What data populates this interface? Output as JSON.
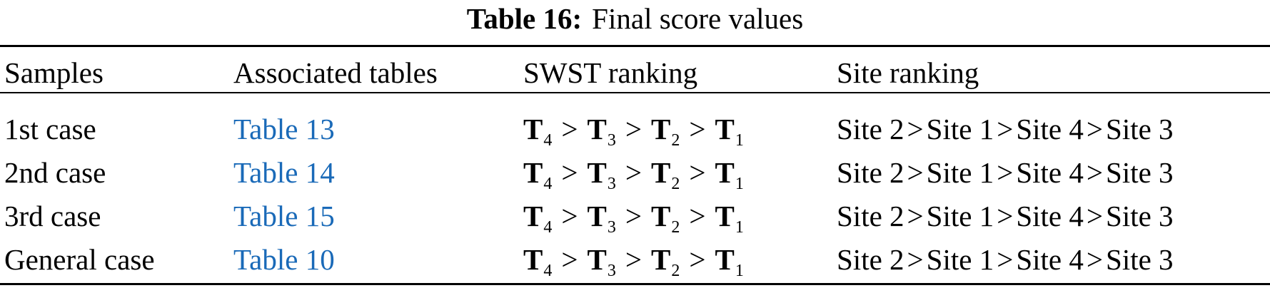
{
  "caption": {
    "label": "Table 16:",
    "title": "Final score values"
  },
  "columns": [
    "Samples",
    "Associated tables",
    "SWST ranking",
    "Site ranking"
  ],
  "rows": [
    {
      "sample": "1st case",
      "table": "Table 13",
      "swst": [
        {
          "sym": "T",
          "sub": "4"
        },
        {
          "sym": "T",
          "sub": "3"
        },
        {
          "sym": "T",
          "sub": "2"
        },
        {
          "sym": "T",
          "sub": "1"
        }
      ],
      "sites": [
        "Site 2",
        "Site 1",
        "Site 4",
        "Site 3"
      ]
    },
    {
      "sample": "2nd case",
      "table": "Table 14",
      "swst": [
        {
          "sym": "T",
          "sub": "4"
        },
        {
          "sym": "T",
          "sub": "3"
        },
        {
          "sym": "T",
          "sub": "2"
        },
        {
          "sym": "T",
          "sub": "1"
        }
      ],
      "sites": [
        "Site 2",
        "Site 1",
        "Site 4",
        "Site 3"
      ]
    },
    {
      "sample": "3rd case",
      "table": "Table 15",
      "swst": [
        {
          "sym": "T",
          "sub": "4"
        },
        {
          "sym": "T",
          "sub": "3"
        },
        {
          "sym": "T",
          "sub": "2"
        },
        {
          "sym": "T",
          "sub": "1"
        }
      ],
      "sites": [
        "Site 2",
        "Site 1",
        "Site 4",
        "Site 3"
      ]
    },
    {
      "sample": "General case",
      "table": "Table 10",
      "swst": [
        {
          "sym": "T",
          "sub": "4"
        },
        {
          "sym": "T",
          "sub": "3"
        },
        {
          "sym": "T",
          "sub": "2"
        },
        {
          "sym": "T",
          "sub": "1"
        }
      ],
      "sites": [
        "Site 2",
        "Site 1",
        "Site 4",
        "Site 3"
      ]
    }
  ],
  "separator": ">",
  "colors": {
    "link": "#1a6ab8",
    "text": "#000000"
  }
}
